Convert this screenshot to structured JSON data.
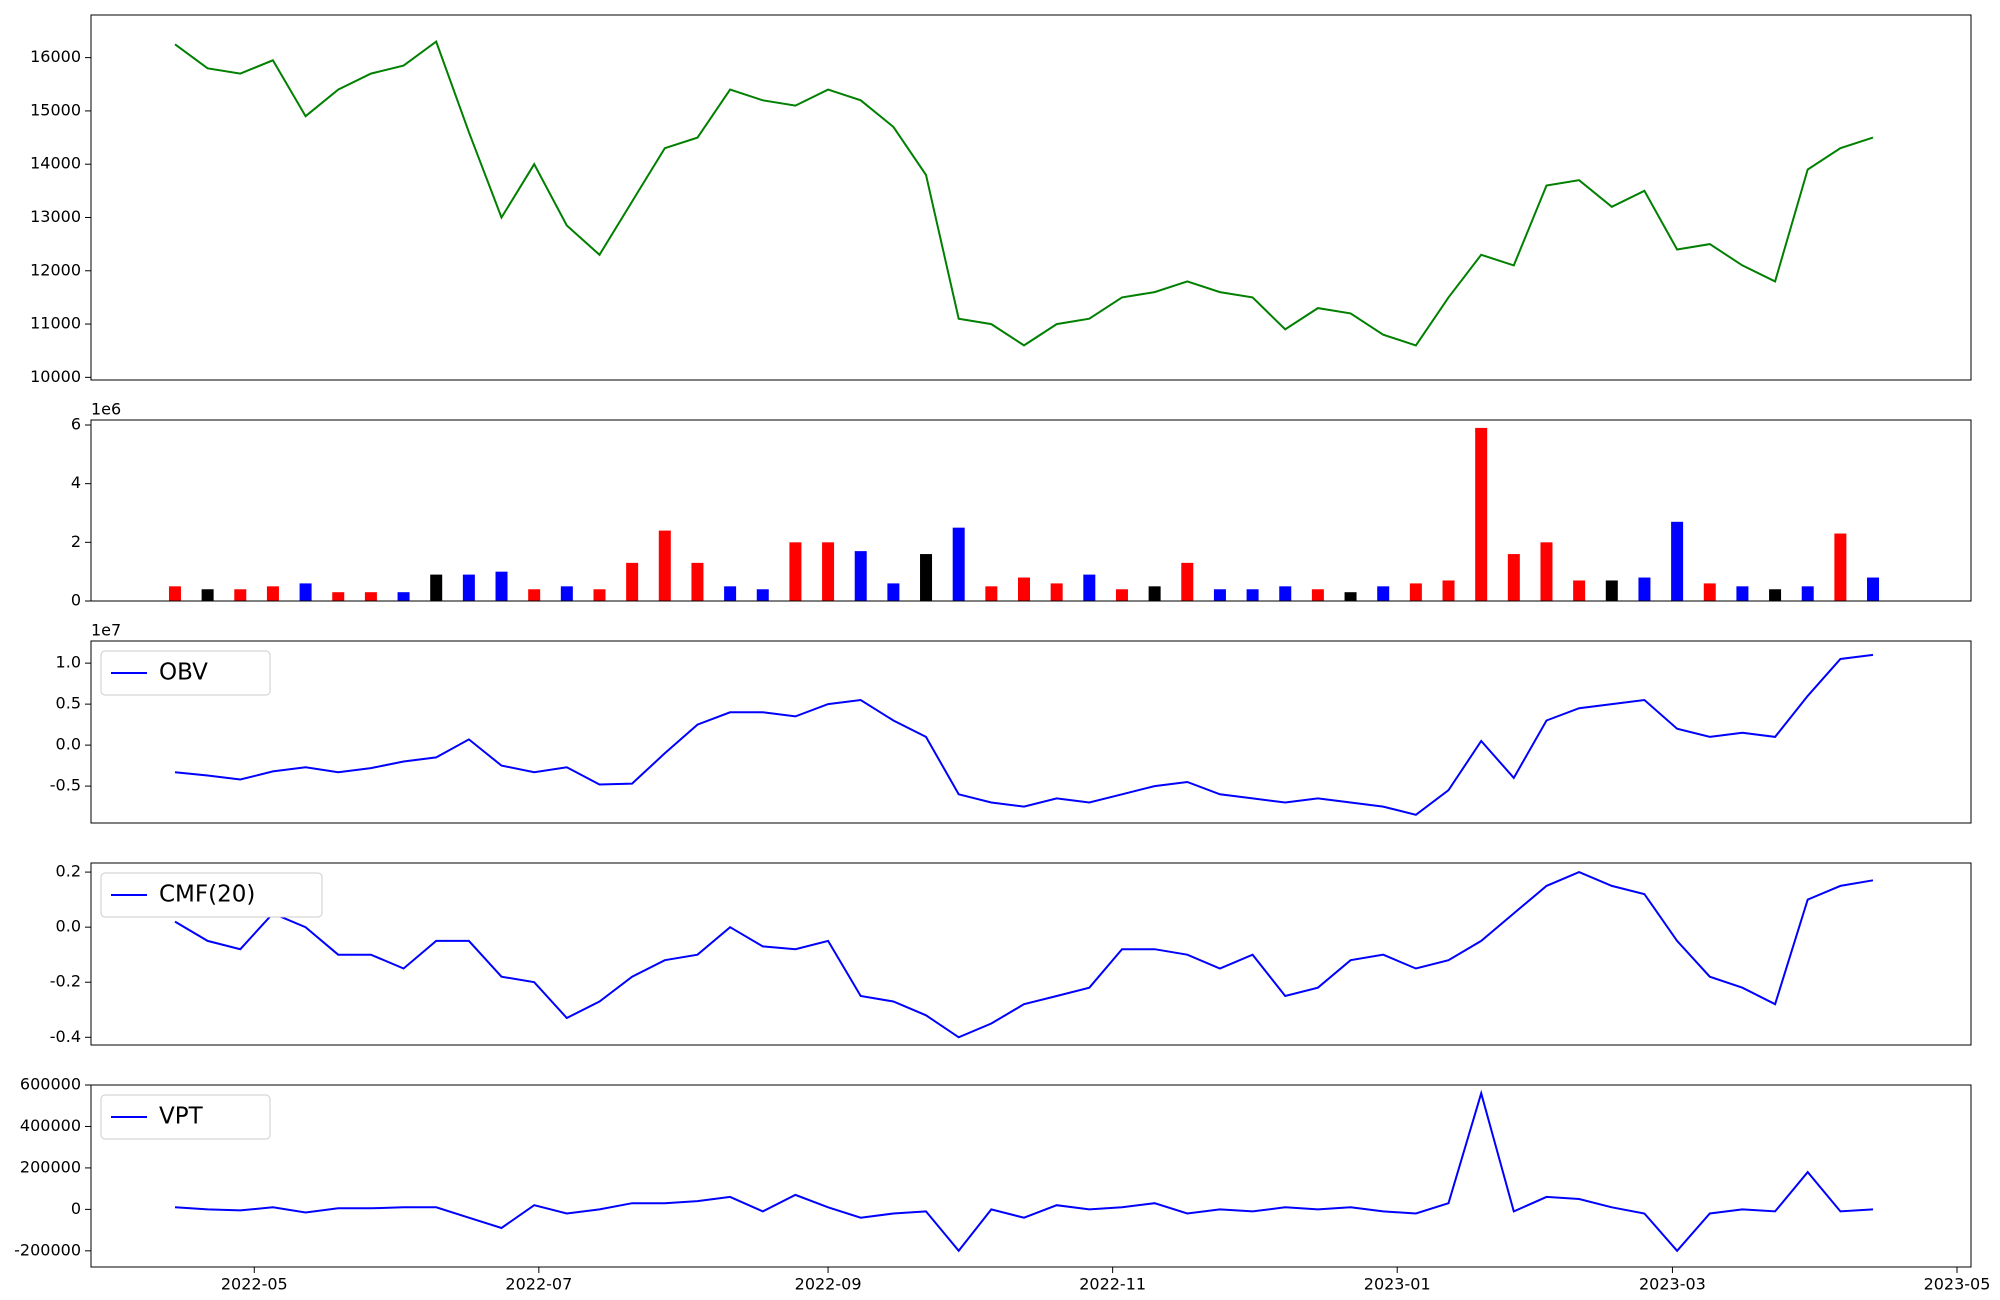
{
  "chart_data": [
    {
      "type": "line",
      "x": [
        "2022-04-14",
        "2022-04-21",
        "2022-04-28",
        "2022-05-05",
        "2022-05-12",
        "2022-05-19",
        "2022-05-26",
        "2022-06-02",
        "2022-06-09",
        "2022-06-16",
        "2022-06-23",
        "2022-06-30",
        "2022-07-07",
        "2022-07-14",
        "2022-07-21",
        "2022-07-28",
        "2022-08-04",
        "2022-08-11",
        "2022-08-18",
        "2022-08-25",
        "2022-09-01",
        "2022-09-08",
        "2022-09-15",
        "2022-09-22",
        "2022-09-29",
        "2022-10-06",
        "2022-10-13",
        "2022-10-20",
        "2022-10-27",
        "2022-11-03",
        "2022-11-10",
        "2022-11-17",
        "2022-11-24",
        "2022-12-01",
        "2022-12-08",
        "2022-12-15",
        "2022-12-22",
        "2022-12-29",
        "2023-01-05",
        "2023-01-12",
        "2023-01-19",
        "2023-01-26",
        "2023-02-02",
        "2023-02-09",
        "2023-02-16",
        "2023-02-23",
        "2023-03-02",
        "2023-03-09",
        "2023-03-16",
        "2023-03-23",
        "2023-03-30",
        "2023-04-06",
        "2023-04-13"
      ],
      "series": [
        {
          "color": "#008000",
          "values": [
            16250,
            15800,
            15700,
            15950,
            14900,
            15400,
            15700,
            15850,
            16300,
            14600,
            13000,
            14000,
            12850,
            12300,
            13300,
            14300,
            14500,
            15400,
            15200,
            15100,
            15400,
            15200,
            14700,
            13800,
            11100,
            11000,
            10600,
            11000,
            11100,
            11500,
            11600,
            11800,
            11600,
            11500,
            10900,
            11300,
            11200,
            10800,
            10600,
            11500,
            12300,
            12100,
            13600,
            13700,
            13200,
            13500,
            12400,
            12500,
            12100,
            11800,
            13900,
            14300,
            14500
          ]
        }
      ],
      "xlim": [
        "2022-03-27",
        "2023-05-04"
      ],
      "ylim": [
        9950,
        16800
      ],
      "yticks": [
        10000,
        11000,
        12000,
        13000,
        14000,
        15000,
        16000
      ]
    },
    {
      "type": "bar",
      "x": [
        "2022-04-14",
        "2022-04-21",
        "2022-04-28",
        "2022-05-05",
        "2022-05-12",
        "2022-05-19",
        "2022-05-26",
        "2022-06-02",
        "2022-06-09",
        "2022-06-16",
        "2022-06-23",
        "2022-06-30",
        "2022-07-07",
        "2022-07-14",
        "2022-07-21",
        "2022-07-28",
        "2022-08-04",
        "2022-08-11",
        "2022-08-18",
        "2022-08-25",
        "2022-09-01",
        "2022-09-08",
        "2022-09-15",
        "2022-09-22",
        "2022-09-29",
        "2022-10-06",
        "2022-10-13",
        "2022-10-20",
        "2022-10-27",
        "2022-11-03",
        "2022-11-10",
        "2022-11-17",
        "2022-11-24",
        "2022-12-01",
        "2022-12-08",
        "2022-12-15",
        "2022-12-22",
        "2022-12-29",
        "2023-01-05",
        "2023-01-12",
        "2023-01-19",
        "2023-01-26",
        "2023-02-02",
        "2023-02-09",
        "2023-02-16",
        "2023-02-23",
        "2023-03-02",
        "2023-03-09",
        "2023-03-16",
        "2023-03-23",
        "2023-03-30",
        "2023-04-06",
        "2023-04-13"
      ],
      "series": [
        {
          "values": [
            0.5,
            0.4,
            0.4,
            0.5,
            0.6,
            0.3,
            0.3,
            0.3,
            0.9,
            0.9,
            1.0,
            0.4,
            0.5,
            0.4,
            1.3,
            2.4,
            1.3,
            0.5,
            0.4,
            2.0,
            2.0,
            1.7,
            0.6,
            1.6,
            2.5,
            0.5,
            0.8,
            0.6,
            0.9,
            0.4,
            0.5,
            1.3,
            0.4,
            0.4,
            0.5,
            0.4,
            0.3,
            0.5,
            0.6,
            0.7,
            5.9,
            1.6,
            2.0,
            0.7,
            0.7,
            0.8,
            2.7,
            0.6,
            0.5,
            0.4,
            0.5,
            2.3,
            0.8
          ],
          "colors": [
            "red",
            "black",
            "red",
            "red",
            "blue",
            "red",
            "red",
            "blue",
            "black",
            "blue",
            "blue",
            "red",
            "blue",
            "red",
            "red",
            "red",
            "red",
            "blue",
            "blue",
            "red",
            "red",
            "blue",
            "blue",
            "black",
            "blue",
            "red",
            "red",
            "red",
            "blue",
            "red",
            "black",
            "red",
            "blue",
            "blue",
            "blue",
            "red",
            "black",
            "blue",
            "red",
            "red",
            "red",
            "red",
            "red",
            "red",
            "black",
            "blue",
            "blue",
            "red",
            "blue",
            "black",
            "blue",
            "red",
            "blue"
          ]
        }
      ],
      "offset_text": "1e6",
      "xlim": [
        "2022-03-27",
        "2023-05-04"
      ],
      "ylim": [
        0,
        6.17
      ],
      "yticks": [
        0,
        2,
        4,
        6
      ]
    },
    {
      "type": "line",
      "x": [
        "2022-04-14",
        "2022-04-21",
        "2022-04-28",
        "2022-05-05",
        "2022-05-12",
        "2022-05-19",
        "2022-05-26",
        "2022-06-02",
        "2022-06-09",
        "2022-06-16",
        "2022-06-23",
        "2022-06-30",
        "2022-07-07",
        "2022-07-14",
        "2022-07-21",
        "2022-07-28",
        "2022-08-04",
        "2022-08-11",
        "2022-08-18",
        "2022-08-25",
        "2022-09-01",
        "2022-09-08",
        "2022-09-15",
        "2022-09-22",
        "2022-09-29",
        "2022-10-06",
        "2022-10-13",
        "2022-10-20",
        "2022-10-27",
        "2022-11-03",
        "2022-11-10",
        "2022-11-17",
        "2022-11-24",
        "2022-12-01",
        "2022-12-08",
        "2022-12-15",
        "2022-12-22",
        "2022-12-29",
        "2023-01-05",
        "2023-01-12",
        "2023-01-19",
        "2023-01-26",
        "2023-02-02",
        "2023-02-09",
        "2023-02-16",
        "2023-02-23",
        "2023-03-02",
        "2023-03-09",
        "2023-03-16",
        "2023-03-23",
        "2023-03-30",
        "2023-04-06",
        "2023-04-13"
      ],
      "series": [
        {
          "name": "OBV",
          "color": "#0000ff",
          "values": [
            -0.33,
            -0.37,
            -0.42,
            -0.32,
            -0.27,
            -0.33,
            -0.28,
            -0.2,
            -0.15,
            0.07,
            -0.25,
            -0.33,
            -0.27,
            -0.48,
            -0.47,
            -0.1,
            0.25,
            0.4,
            0.4,
            0.35,
            0.5,
            0.55,
            0.3,
            0.1,
            -0.6,
            -0.7,
            -0.75,
            -0.65,
            -0.7,
            -0.6,
            -0.5,
            -0.45,
            -0.6,
            -0.65,
            -0.7,
            -0.65,
            -0.7,
            -0.75,
            -0.85,
            -0.55,
            0.05,
            -0.4,
            0.3,
            0.45,
            0.5,
            0.55,
            0.2,
            0.1,
            0.15,
            0.1,
            0.6,
            1.05,
            1.1
          ]
        }
      ],
      "offset_text": "1e7",
      "legend": "upper left",
      "xlim": [
        "2022-03-27",
        "2023-05-04"
      ],
      "ylim": [
        -0.95,
        1.27
      ],
      "yticks": [
        -0.5,
        {
          "value": 0,
          "label": "0.0"
        },
        0.5,
        {
          "value": 1,
          "label": "1.0"
        }
      ]
    },
    {
      "type": "line",
      "x": [
        "2022-04-14",
        "2022-04-21",
        "2022-04-28",
        "2022-05-05",
        "2022-05-12",
        "2022-05-19",
        "2022-05-26",
        "2022-06-02",
        "2022-06-09",
        "2022-06-16",
        "2022-06-23",
        "2022-06-30",
        "2022-07-07",
        "2022-07-14",
        "2022-07-21",
        "2022-07-28",
        "2022-08-04",
        "2022-08-11",
        "2022-08-18",
        "2022-08-25",
        "2022-09-01",
        "2022-09-08",
        "2022-09-15",
        "2022-09-22",
        "2022-09-29",
        "2022-10-06",
        "2022-10-13",
        "2022-10-20",
        "2022-10-27",
        "2022-11-03",
        "2022-11-10",
        "2022-11-17",
        "2022-11-24",
        "2022-12-01",
        "2022-12-08",
        "2022-12-15",
        "2022-12-22",
        "2022-12-29",
        "2023-01-05",
        "2023-01-12",
        "2023-01-19",
        "2023-01-26",
        "2023-02-02",
        "2023-02-09",
        "2023-02-16",
        "2023-02-23",
        "2023-03-02",
        "2023-03-09",
        "2023-03-16",
        "2023-03-23",
        "2023-03-30",
        "2023-04-06",
        "2023-04-13"
      ],
      "series": [
        {
          "name": "CMF(20)",
          "color": "#0000ff",
          "values": [
            0.02,
            -0.05,
            -0.08,
            0.05,
            0.0,
            -0.1,
            -0.1,
            -0.15,
            -0.05,
            -0.05,
            -0.18,
            -0.2,
            -0.33,
            -0.27,
            -0.18,
            -0.12,
            -0.1,
            0.0,
            -0.07,
            -0.08,
            -0.05,
            -0.25,
            -0.27,
            -0.32,
            -0.4,
            -0.35,
            -0.28,
            -0.25,
            -0.22,
            -0.08,
            -0.08,
            -0.1,
            -0.15,
            -0.1,
            -0.25,
            -0.22,
            -0.12,
            -0.1,
            -0.15,
            -0.12,
            -0.05,
            0.05,
            0.15,
            0.2,
            0.15,
            0.12,
            -0.05,
            -0.18,
            -0.22,
            -0.28,
            0.1,
            0.15,
            0.17
          ]
        }
      ],
      "legend": "upper left",
      "xlim": [
        "2022-03-27",
        "2023-05-04"
      ],
      "ylim": [
        -0.428,
        0.233
      ],
      "yticks": [
        -0.4,
        -0.2,
        {
          "value": 0,
          "label": "0.0"
        },
        0.2
      ]
    },
    {
      "type": "line",
      "x": [
        "2022-04-14",
        "2022-04-21",
        "2022-04-28",
        "2022-05-05",
        "2022-05-12",
        "2022-05-19",
        "2022-05-26",
        "2022-06-02",
        "2022-06-09",
        "2022-06-16",
        "2022-06-23",
        "2022-06-30",
        "2022-07-07",
        "2022-07-14",
        "2022-07-21",
        "2022-07-28",
        "2022-08-04",
        "2022-08-11",
        "2022-08-18",
        "2022-08-25",
        "2022-09-01",
        "2022-09-08",
        "2022-09-15",
        "2022-09-22",
        "2022-09-29",
        "2022-10-06",
        "2022-10-13",
        "2022-10-20",
        "2022-10-27",
        "2022-11-03",
        "2022-11-10",
        "2022-11-17",
        "2022-11-24",
        "2022-12-01",
        "2022-12-08",
        "2022-12-15",
        "2022-12-22",
        "2022-12-29",
        "2023-01-05",
        "2023-01-12",
        "2023-01-19",
        "2023-01-26",
        "2023-02-02",
        "2023-02-09",
        "2023-02-16",
        "2023-02-23",
        "2023-03-02",
        "2023-03-09",
        "2023-03-16",
        "2023-03-23",
        "2023-03-30",
        "2023-04-06",
        "2023-04-13"
      ],
      "series": [
        {
          "name": "VPT",
          "color": "#0000ff",
          "values": [
            10000,
            0,
            -5000,
            10000,
            -15000,
            5000,
            5000,
            10000,
            10000,
            -40000,
            -90000,
            20000,
            -20000,
            0,
            30000,
            30000,
            40000,
            60000,
            -10000,
            70000,
            10000,
            -40000,
            -20000,
            -10000,
            -200000,
            0,
            -40000,
            20000,
            0,
            10000,
            30000,
            -20000,
            0,
            -10000,
            10000,
            0,
            10000,
            -10000,
            -20000,
            30000,
            560000,
            -10000,
            60000,
            50000,
            10000,
            -20000,
            -200000,
            -20000,
            0,
            -10000,
            180000,
            -10000,
            0
          ]
        }
      ],
      "legend": "upper left",
      "xlim": [
        "2022-03-27",
        "2023-05-04"
      ],
      "ylim": [
        -278000,
        600000
      ],
      "yticks": [
        -200000,
        0,
        200000,
        400000,
        600000
      ],
      "xticks": [
        {
          "value": "2022-05-01",
          "label": "2022-05"
        },
        {
          "value": "2022-07-01",
          "label": "2022-07"
        },
        {
          "value": "2022-09-01",
          "label": "2022-09"
        },
        {
          "value": "2022-11-01",
          "label": "2022-11"
        },
        {
          "value": "2023-01-01",
          "label": "2023-01"
        },
        {
          "value": "2023-03-01",
          "label": "2023-03"
        },
        {
          "value": "2023-05-01",
          "label": "2023-05"
        }
      ]
    }
  ]
}
